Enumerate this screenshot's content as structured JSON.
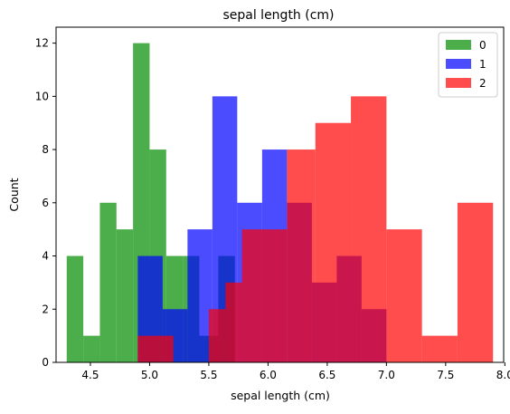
{
  "chart_data": {
    "type": "bar",
    "title": "sepal length (cm)",
    "xlabel": "sepal length (cm)",
    "ylabel": "Count",
    "xlim": [
      4.21,
      7.99
    ],
    "ylim": [
      0,
      12.6
    ],
    "xticks": [
      4.5,
      5.0,
      5.5,
      6.0,
      6.5,
      7.0,
      7.5,
      8.0
    ],
    "xtick_labels": [
      "4.5",
      "5.0",
      "5.5",
      "6.0",
      "6.5",
      "7.0",
      "7.5",
      "8.0"
    ],
    "yticks": [
      0,
      2,
      4,
      6,
      8,
      10,
      12
    ],
    "ytick_labels": [
      "0",
      "2",
      "4",
      "6",
      "8",
      "10",
      "12"
    ],
    "grid": false,
    "legend_position": "top-right",
    "series": [
      {
        "name": "0",
        "color": "#2ca02c",
        "bins": [
          [
            4.3,
            4.44,
            4
          ],
          [
            4.44,
            4.58,
            1
          ],
          [
            4.58,
            4.72,
            6
          ],
          [
            4.72,
            4.86,
            5
          ],
          [
            4.86,
            5.0,
            12
          ],
          [
            5.0,
            5.14,
            8
          ],
          [
            5.14,
            5.28,
            4
          ],
          [
            5.28,
            5.42,
            4
          ],
          [
            5.42,
            5.58,
            1
          ],
          [
            5.58,
            5.72,
            4
          ]
        ],
        "alpha": 0.85
      },
      {
        "name": "1",
        "color": "#0000ff",
        "bins": [
          [
            4.9,
            5.11,
            4
          ],
          [
            5.11,
            5.32,
            2
          ],
          [
            5.32,
            5.53,
            5
          ],
          [
            5.53,
            5.74,
            10
          ],
          [
            5.74,
            5.95,
            6
          ],
          [
            5.95,
            6.16,
            8
          ],
          [
            6.16,
            6.37,
            6
          ],
          [
            6.37,
            6.58,
            3
          ],
          [
            6.58,
            6.79,
            4
          ],
          [
            6.79,
            7.0,
            2
          ]
        ],
        "alpha": 0.7
      },
      {
        "name": "2",
        "color": "#ff0000",
        "bins": [
          [
            4.9,
            5.2,
            1
          ],
          [
            5.5,
            5.64,
            2
          ],
          [
            5.64,
            5.78,
            3
          ],
          [
            5.78,
            6.16,
            5
          ],
          [
            6.16,
            6.4,
            8
          ],
          [
            6.4,
            6.7,
            9
          ],
          [
            6.7,
            7.0,
            10
          ],
          [
            7.0,
            7.3,
            5
          ],
          [
            7.3,
            7.6,
            1
          ],
          [
            7.6,
            7.9,
            6
          ]
        ],
        "alpha": 0.7
      }
    ]
  }
}
